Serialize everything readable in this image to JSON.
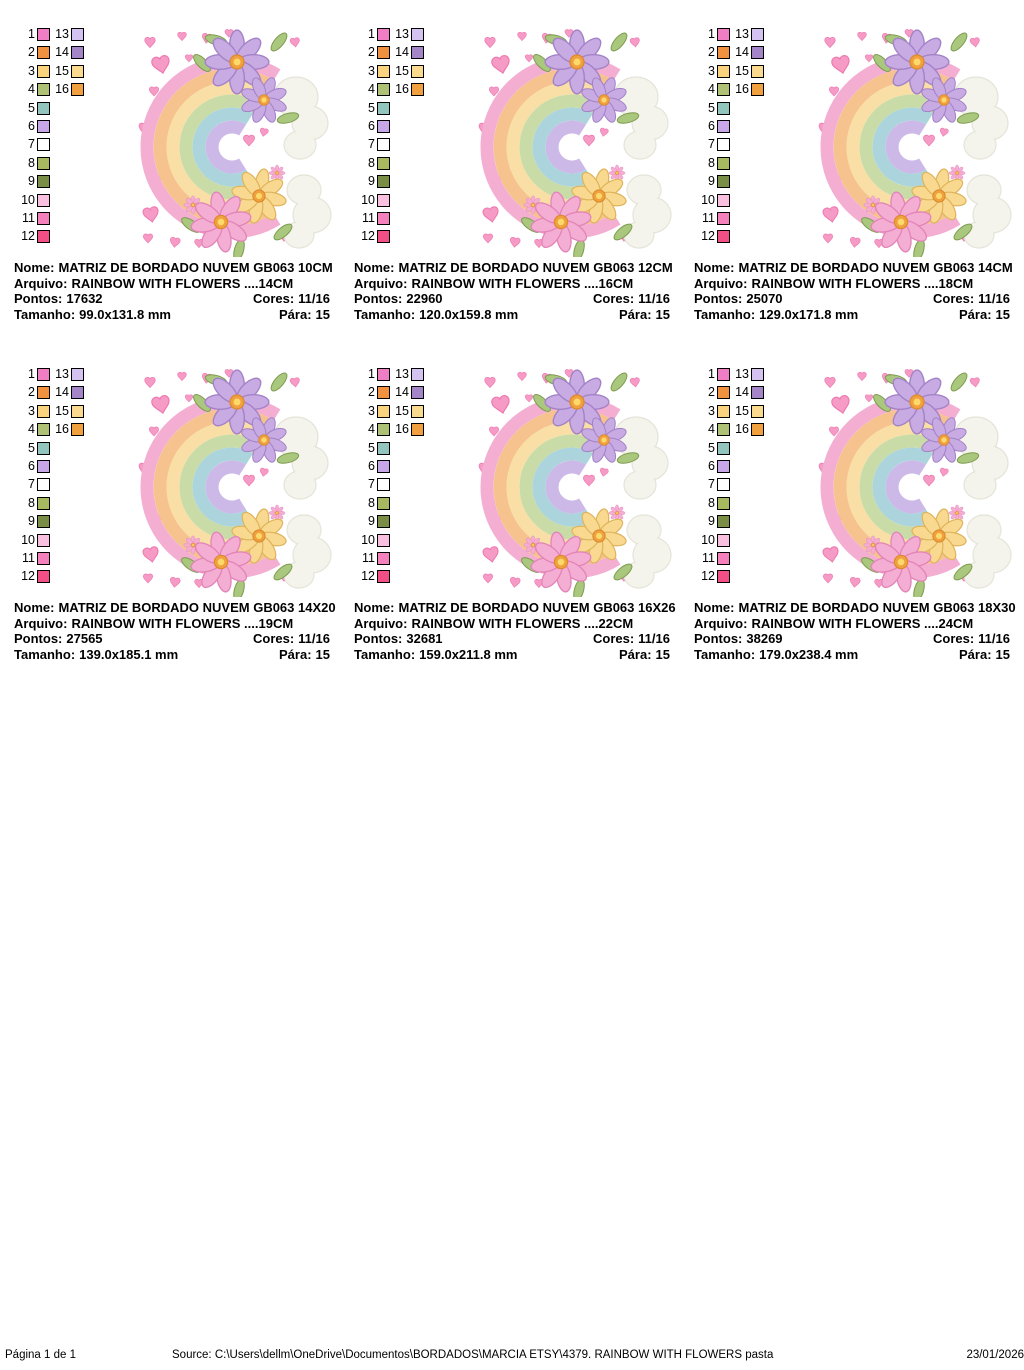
{
  "labels": {
    "nome": "Nome:",
    "arquivo": "Arquivo:",
    "pontos": "Pontos:",
    "cores": "Cores:",
    "tamanho": "Tamanho:",
    "para": "Pára:"
  },
  "panels": [
    {
      "nome": "MATRIZ DE BORDADO NUVEM GB063 10CM",
      "arquivo": "RAINBOW WITH FLOWERS ....14CM",
      "pontos": "17632",
      "cores": "11/16",
      "tamanho": "99.0x131.8 mm",
      "para": "15"
    },
    {
      "nome": "MATRIZ DE BORDADO NUVEM GB063 12CM",
      "arquivo": "RAINBOW WITH FLOWERS ....16CM",
      "pontos": "22960",
      "cores": "11/16",
      "tamanho": "120.0x159.8 mm",
      "para": "15"
    },
    {
      "nome": "MATRIZ DE BORDADO NUVEM GB063 14CM",
      "arquivo": "RAINBOW WITH FLOWERS ....18CM",
      "pontos": "25070",
      "cores": "11/16",
      "tamanho": "129.0x171.8 mm",
      "para": "15"
    },
    {
      "nome": "MATRIZ DE BORDADO NUVEM GB063 14X20",
      "arquivo": "RAINBOW WITH FLOWERS ....19CM",
      "pontos": "27565",
      "cores": "11/16",
      "tamanho": "139.0x185.1 mm",
      "para": "15"
    },
    {
      "nome": "MATRIZ DE BORDADO NUVEM GB063 16X26",
      "arquivo": "RAINBOW WITH FLOWERS ....22CM",
      "pontos": "32681",
      "cores": "11/16",
      "tamanho": "159.0x211.8 mm",
      "para": "15"
    },
    {
      "nome": "MATRIZ DE BORDADO NUVEM GB063 18X30",
      "arquivo": "RAINBOW WITH FLOWERS ....24CM",
      "pontos": "38269",
      "cores": "11/16",
      "tamanho": "179.0x238.4 mm",
      "para": "15"
    }
  ],
  "palette": [
    {
      "n": "1",
      "hex": "#F07EC5"
    },
    {
      "n": "2",
      "hex": "#F19240"
    },
    {
      "n": "3",
      "hex": "#FAD37E"
    },
    {
      "n": "4",
      "hex": "#AFC175"
    },
    {
      "n": "5",
      "hex": "#92C5BD"
    },
    {
      "n": "6",
      "hex": "#C7A7E8"
    },
    {
      "n": "7",
      "hex": "#FFFFFF"
    },
    {
      "n": "8",
      "hex": "#A6B860"
    },
    {
      "n": "9",
      "hex": "#7B8E45"
    },
    {
      "n": "10",
      "hex": "#F9C0DF"
    },
    {
      "n": "11",
      "hex": "#F480BC"
    },
    {
      "n": "12",
      "hex": "#F14F86"
    },
    {
      "n": "13",
      "hex": "#D4C2F0"
    },
    {
      "n": "14",
      "hex": "#A485C8"
    },
    {
      "n": "15",
      "hex": "#FADA8E"
    },
    {
      "n": "16",
      "hex": "#F0A03E"
    }
  ],
  "footer": {
    "page": "Página 1 de 1",
    "source": "Source: C:\\Users\\dellm\\OneDrive\\Documentos\\BORDADOS\\MARCIA ETSY\\4379. RAINBOW WITH FLOWERS pasta",
    "date": "23/01/2026"
  },
  "artwork": {
    "band1": "#F3AED2",
    "band2": "#F6C28E",
    "band3": "#F9DFA6",
    "band4": "#C9DCA8",
    "band5": "#ABD4DC",
    "band6": "#CDB9E8",
    "cloud": "#F4F4ED",
    "cloud_edge": "#E4E4D8",
    "petal_purple": "#C9ABE3",
    "petal_purple_edge": "#A383C7",
    "petal_pink": "#F5AED3",
    "petal_pink_edge": "#E285B8",
    "petal_yellow": "#F8D98F",
    "petal_yellow_edge": "#DFB45C",
    "flower_center": "#F0A03E",
    "flower_center_edge": "#D9882B",
    "flower_center_dot": "#FBD96A",
    "leaf": "#A9C77D",
    "leaf_edge": "#7E9C4F",
    "heart": "#F59BC6",
    "heart_edge": "#EE79B0"
  }
}
